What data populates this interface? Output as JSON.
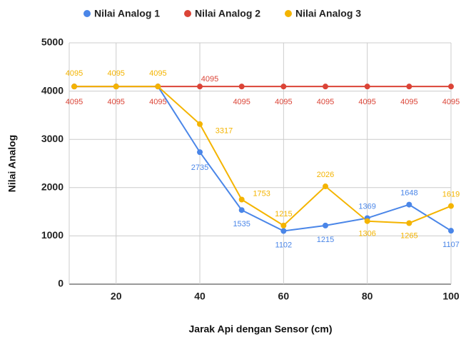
{
  "chart_data": {
    "type": "line",
    "x_label": "Jarak Api dengan Sensor (cm)",
    "y_label": "Nilai Analog",
    "x": [
      10,
      20,
      30,
      40,
      50,
      60,
      70,
      80,
      90,
      100
    ],
    "series": [
      {
        "name": "Nilai Analog 1",
        "color": "#4a86e8",
        "values": [
          4095,
          4095,
          4095,
          2735,
          1535,
          1102,
          1215,
          1369,
          1648,
          1107
        ]
      },
      {
        "name": "Nilai Analog 2",
        "color": "#db4437",
        "values": [
          4095,
          4095,
          4095,
          4095,
          4095,
          4095,
          4095,
          4095,
          4095,
          4095
        ]
      },
      {
        "name": "Nilai Analog 3",
        "color": "#f4b400",
        "values": [
          4095,
          4095,
          4095,
          3317,
          1753,
          1215,
          2026,
          1306,
          1265,
          1619
        ]
      }
    ],
    "xlim": [
      8.8,
      100
    ],
    "xticks": [
      20,
      40,
      60,
      80,
      100
    ],
    "ylim": [
      0,
      5000
    ],
    "yticks": [
      0,
      1000,
      2000,
      3000,
      4000,
      5000
    ],
    "grid": true,
    "legend": "top"
  }
}
